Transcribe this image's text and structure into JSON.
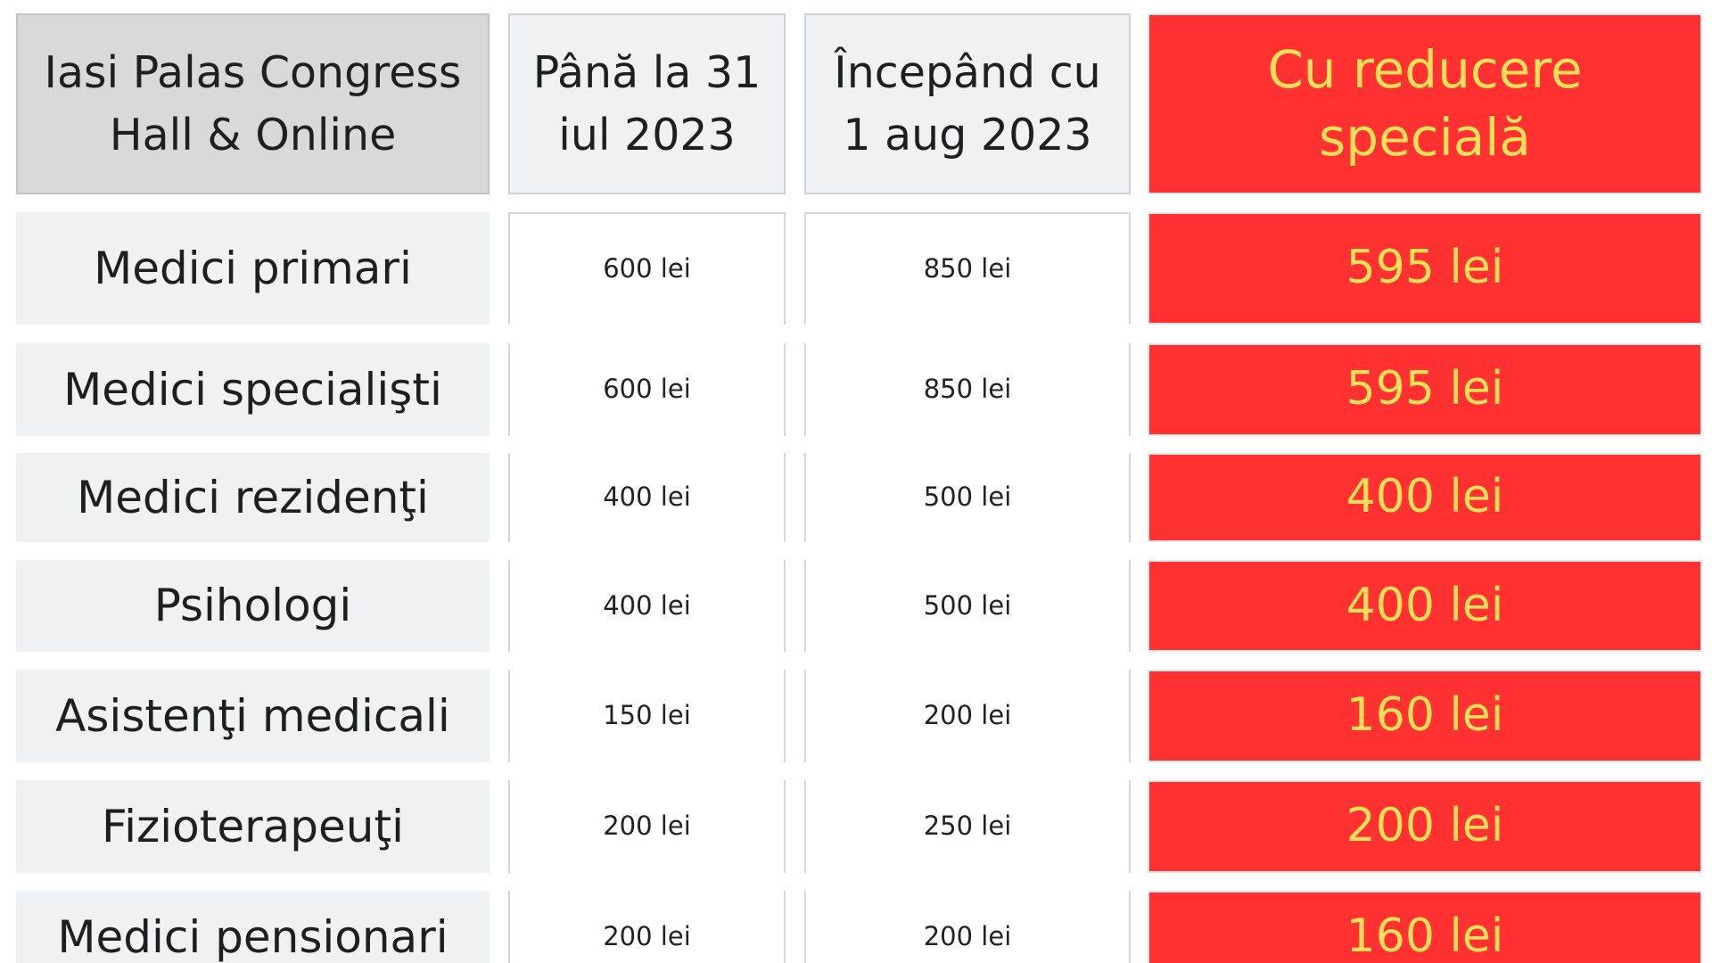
{
  "header": {
    "venue": [
      "Iasi Palas Congress",
      "Hall & Online"
    ],
    "until": [
      "Până la 31",
      "iul 2023"
    ],
    "from": [
      "Începând cu",
      "1 aug 2023"
    ],
    "special": [
      "Cu reducere",
      "specială"
    ]
  },
  "rows": [
    {
      "category": "Medici primari",
      "until": "600 lei",
      "from": "850 lei",
      "special": "595 lei"
    },
    {
      "category": "Medici specialişti",
      "until": "600 lei",
      "from": "850 lei",
      "special": "595 lei"
    },
    {
      "category": "Medici rezidenţi",
      "until": "400 lei",
      "from": "500 lei",
      "special": "400 lei"
    },
    {
      "category": "Psihologi",
      "until": "400 lei",
      "from": "500 lei",
      "special": "400 lei"
    },
    {
      "category": "Asistenţi medicali",
      "until": "150 lei",
      "from": "200 lei",
      "special": "160 lei"
    },
    {
      "category": "Fizioterapeuţi",
      "until": "200 lei",
      "from": "250 lei",
      "special": "200 lei"
    },
    {
      "category": "Medici pensionari",
      "until": "200 lei",
      "from": "200 lei",
      "special": "160 lei"
    }
  ],
  "colors": {
    "special_background": "#ff3131",
    "special_text": "#ffde59",
    "venue_header_background": "#d9d9d9",
    "category_background": "#f0f1f3"
  }
}
